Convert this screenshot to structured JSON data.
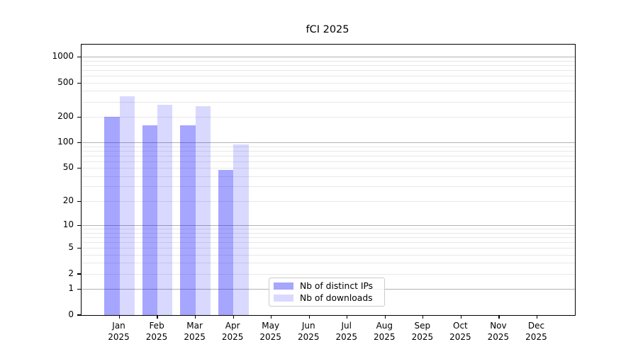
{
  "title": "fCI 2025",
  "chart_data": {
    "type": "bar",
    "title": "fCI 2025",
    "categories": [
      "Jan",
      "Feb",
      "Mar",
      "Apr",
      "May",
      "Jun",
      "Jul",
      "Aug",
      "Sep",
      "Oct",
      "Nov",
      "Dec"
    ],
    "category_year": "2025",
    "series": [
      {
        "name": "Nb of distinct IPs",
        "color": "rgba(0,0,255,0.35)",
        "values": [
          200,
          160,
          160,
          48,
          null,
          null,
          null,
          null,
          null,
          null,
          null,
          null
        ]
      },
      {
        "name": "Nb of downloads",
        "color": "rgba(0,0,255,0.15)",
        "values": [
          350,
          280,
          270,
          95,
          null,
          null,
          null,
          null,
          null,
          null,
          null,
          null
        ]
      }
    ],
    "yscale": "log1p",
    "ylim": [
      0,
      1400
    ],
    "ytick_labels": [
      1000,
      500,
      200,
      100,
      50,
      20,
      10,
      5,
      2,
      1,
      0
    ],
    "grid": "both",
    "grid_major_color": "rgba(0,0,0,0.30)",
    "grid_minor_color": "rgba(0,0,0,0.09)",
    "legend_position": "lower-center-inside",
    "background": "#ffffff"
  }
}
